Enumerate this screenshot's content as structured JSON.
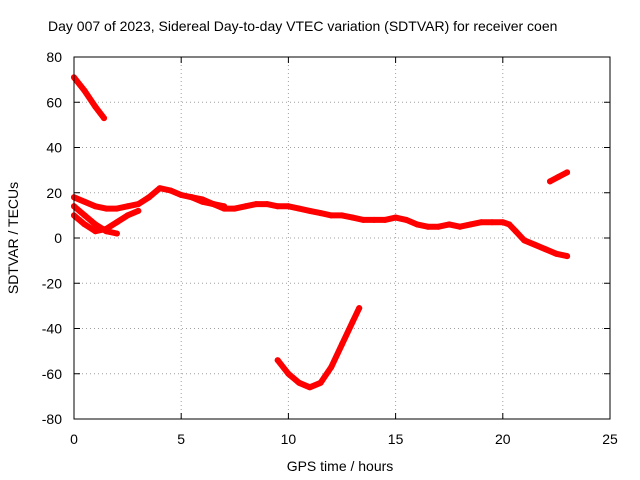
{
  "chart_data": {
    "type": "line",
    "title": "Day 007 of 2023, Sidereal Day-to-day VTEC variation (SDTVAR) for receiver coen",
    "xlabel": "GPS time / hours",
    "ylabel": "SDTVAR / TECUs",
    "xlim": [
      0,
      25
    ],
    "ylim": [
      -80,
      80
    ],
    "xticks": [
      0,
      5,
      10,
      15,
      20,
      25
    ],
    "yticks": [
      -80,
      -60,
      -40,
      -20,
      0,
      20,
      40,
      60,
      80
    ],
    "grid": true,
    "legend": "none",
    "color": "#ff0000",
    "series": [
      {
        "name": "track-a",
        "x": [
          0.0,
          0.5,
          1.0,
          1.4
        ],
        "y": [
          71,
          65,
          58,
          53
        ]
      },
      {
        "name": "track-b",
        "x": [
          0.0,
          0.5,
          1.0,
          1.5,
          2.0,
          2.5,
          3.0,
          3.5,
          4.0,
          4.5,
          5.0,
          5.5,
          6.0,
          6.5,
          7.0
        ],
        "y": [
          18,
          16,
          14,
          13,
          13,
          14,
          15,
          18,
          22,
          21,
          19,
          18,
          16,
          15,
          14
        ]
      },
      {
        "name": "track-c",
        "x": [
          0.0,
          0.5,
          1.0,
          1.5,
          2.0
        ],
        "y": [
          14,
          10,
          6,
          3,
          2
        ]
      },
      {
        "name": "track-d",
        "x": [
          0.0,
          0.5,
          1.0,
          1.5,
          2.0,
          2.5,
          3.0
        ],
        "y": [
          10,
          6,
          3,
          4,
          7,
          10,
          12
        ]
      },
      {
        "name": "track-e",
        "x": [
          5.5,
          6.0,
          6.5,
          7.0,
          7.5,
          8.0,
          8.5,
          9.0,
          9.5,
          10.0,
          10.5,
          11.0,
          11.5,
          12.0,
          12.5,
          13.0,
          13.5,
          14.0,
          14.5,
          15.0,
          15.5,
          16.0,
          16.5,
          17.0,
          17.5,
          18.0,
          18.5,
          19.0,
          19.5,
          20.0,
          20.3,
          20.6,
          21.0,
          21.5,
          22.0,
          22.5,
          23.0
        ],
        "y": [
          18,
          17,
          15,
          13,
          13,
          14,
          15,
          15,
          14,
          14,
          13,
          12,
          11,
          10,
          10,
          9,
          8,
          8,
          8,
          9,
          8,
          6,
          5,
          5,
          6,
          5,
          6,
          7,
          7,
          7,
          6,
          3,
          -1,
          -3,
          -5,
          -7,
          -8
        ]
      },
      {
        "name": "track-f",
        "x": [
          9.5,
          10.0,
          10.5,
          11.0,
          11.5,
          12.0,
          12.5,
          13.0,
          13.3
        ],
        "y": [
          -54,
          -60,
          -64,
          -66,
          -64,
          -57,
          -47,
          -37,
          -31
        ]
      },
      {
        "name": "track-g",
        "x": [
          22.2,
          22.6,
          23.0
        ],
        "y": [
          25,
          27,
          29
        ]
      }
    ]
  }
}
